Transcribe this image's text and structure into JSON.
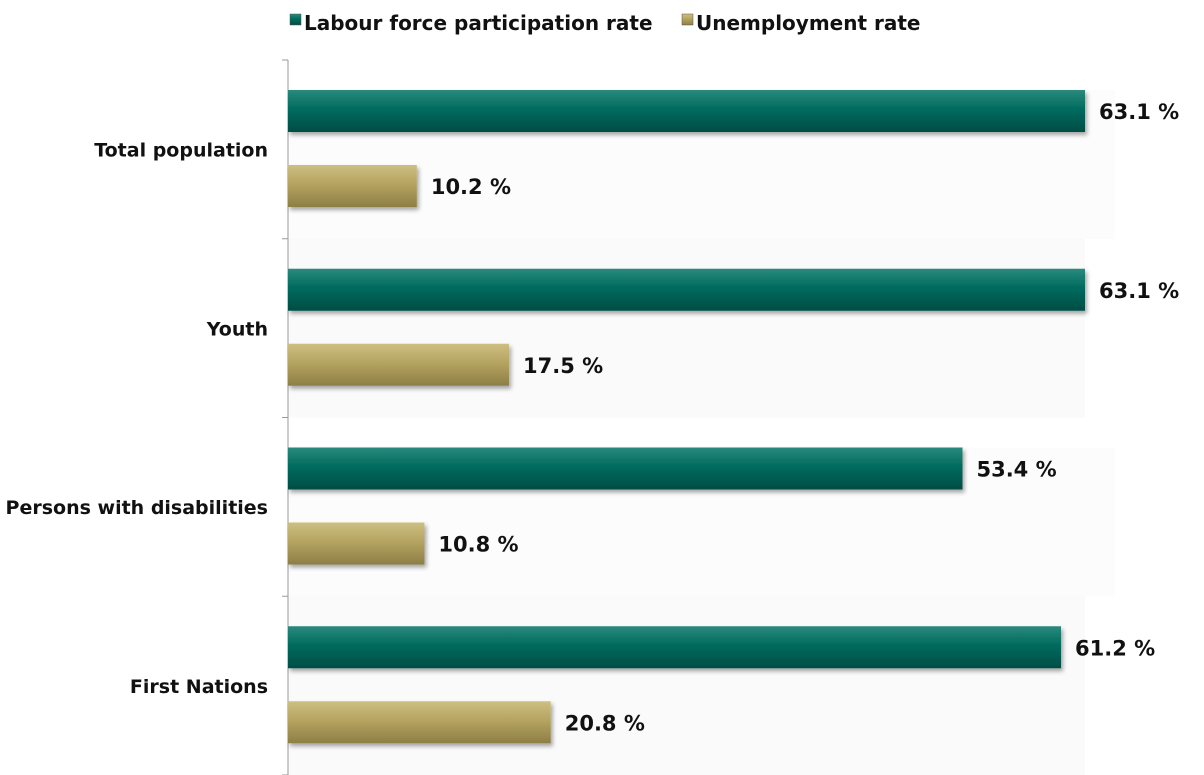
{
  "chart_data": {
    "type": "bar",
    "orientation": "horizontal",
    "title": "",
    "xlabel": "",
    "ylabel": "",
    "xlim": [
      0,
      63.1
    ],
    "grid": false,
    "legend_position": "top",
    "categories": [
      "Total population",
      "Youth",
      "Persons with disabilities",
      "First Nations"
    ],
    "series": [
      {
        "name": "Labour force participation rate",
        "color": "#006b5e",
        "values": [
          63.1,
          63.1,
          53.4,
          61.2
        ],
        "labels": [
          "63.1 %",
          "63.1 %",
          "53.4 %",
          "61.2 %"
        ]
      },
      {
        "name": "Unemployment rate",
        "color": "#b5a461",
        "values": [
          10.2,
          17.5,
          10.8,
          20.8
        ],
        "labels": [
          "10.2 %",
          "17.5 %",
          "10.8 %",
          "20.8 %"
        ]
      }
    ]
  }
}
